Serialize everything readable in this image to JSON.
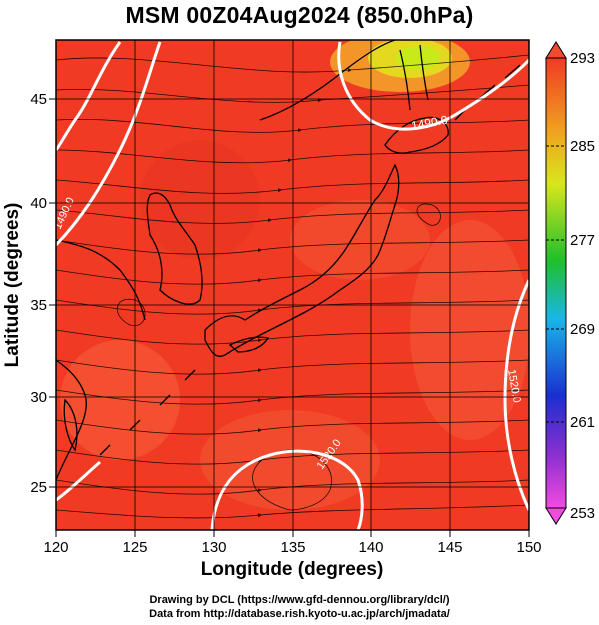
{
  "title": "MSM 00Z04Aug2024 (850.0hPa)",
  "map": {
    "x_axis": {
      "label": "Longitude (degrees)",
      "range": [
        120,
        150
      ],
      "ticks": [
        "120",
        "125",
        "130",
        "135",
        "140",
        "145",
        "150"
      ]
    },
    "y_axis": {
      "label": "Latitude  (degrees)",
      "range": [
        22.4,
        47.6
      ],
      "ticks": [
        "25",
        "30",
        "35",
        "40",
        "45"
      ]
    },
    "grid": true,
    "fields": [
      "temperature (shaded)",
      "streamlines",
      "geopotential height contours"
    ],
    "contour_labels": [
      "1490.0",
      "1490.0",
      "1520.0",
      "1520.0"
    ],
    "colors": {
      "background_field": "#f03a24",
      "warm_patch": "#f66a3c",
      "cool_patch": "#c8ea1a",
      "contour": "#ffffff"
    }
  },
  "colorbar": {
    "min": 253,
    "max": 293,
    "labels": [
      "293",
      "285",
      "277",
      "269",
      "261",
      "253"
    ],
    "colors": [
      "#e83ad8",
      "#1a2fd0",
      "#19b6e8",
      "#1fbf2b",
      "#f5e31c",
      "#f08a20",
      "#f03a24"
    ]
  },
  "credits": {
    "line1": "Drawing by DCL (https://www.gfd-dennou.org/library/dcl/)",
    "line2": "Data from http://database.rish.kyoto-u.ac.jp/arch/jmadata/"
  }
}
